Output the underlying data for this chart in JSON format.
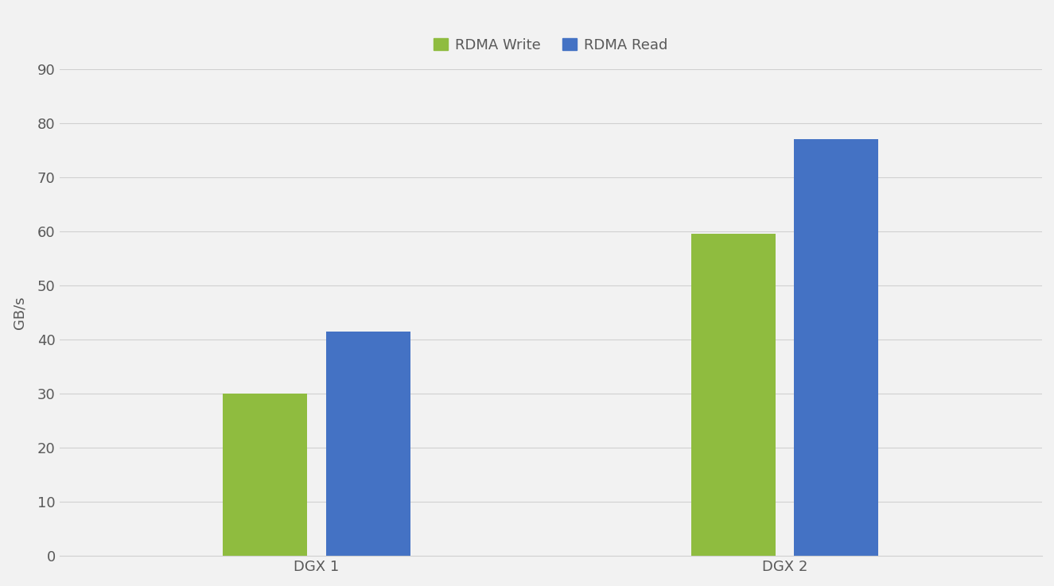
{
  "categories": [
    "DGX 1",
    "DGX 2"
  ],
  "series": [
    {
      "label": "RDMA Write",
      "values": [
        30,
        59.5
      ],
      "color": "#8fbc3f"
    },
    {
      "label": "RDMA Read",
      "values": [
        41.5,
        77
      ],
      "color": "#4472c4"
    }
  ],
  "ylabel": "GB/s",
  "ylim": [
    0,
    90
  ],
  "yticks": [
    0,
    10,
    20,
    30,
    40,
    50,
    60,
    70,
    80,
    90
  ],
  "background_color": "#f2f2f2",
  "plot_background_color": "#f2f2f2",
  "grid_color": "#d0d0d0",
  "bar_width": 0.18,
  "bar_gap": 0.04,
  "legend_fontsize": 13,
  "tick_fontsize": 13,
  "label_fontsize": 13,
  "xtick_fontsize": 13
}
